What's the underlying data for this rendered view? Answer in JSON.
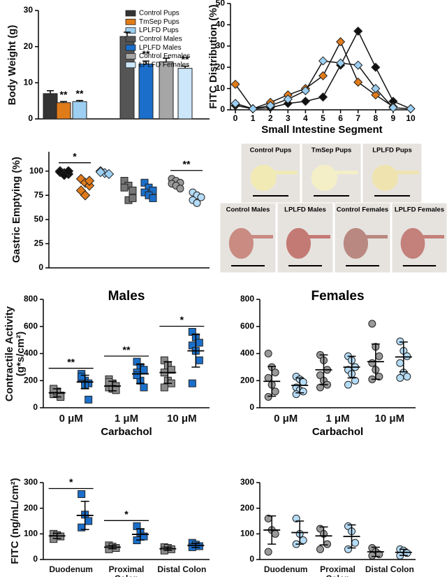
{
  "chart_data": [
    {
      "type": "bar",
      "ylabel": "Body Weight (g)",
      "ylim": [
        0,
        30
      ],
      "yticks": [
        0,
        10,
        20,
        30
      ],
      "series": [
        {
          "name": "Control Pups",
          "color": "#333333",
          "values": [
            7.0
          ],
          "errors": [
            0.8
          ]
        },
        {
          "name": "TmSep Pups",
          "color": "#e07b1a",
          "values": [
            4.5
          ],
          "errors": [
            0.3
          ]
        },
        {
          "name": "LPLFD Pups",
          "color": "#9ccff2",
          "values": [
            4.8
          ],
          "errors": [
            0.3
          ]
        },
        {
          "name": "Control Males",
          "color": "#555555",
          "values": [
            22.8
          ],
          "errors": [
            1.2
          ]
        },
        {
          "name": "LPLFD Males",
          "color": "#1b6fca",
          "values": [
            15.2
          ],
          "errors": [
            0.8
          ]
        },
        {
          "name": "Control Females",
          "color": "#a6a6a6",
          "values": [
            15.8
          ],
          "errors": [
            1.0
          ]
        },
        {
          "name": "LPLFD Females",
          "color": "#cce6fa",
          "values": [
            14.0
          ],
          "errors": [
            0.6
          ]
        }
      ],
      "significance": [
        null,
        "**",
        "**",
        null,
        "**",
        null,
        "**"
      ]
    },
    {
      "type": "line",
      "xlabel": "Small Intestine Segment",
      "ylabel": "FITC Distribution (%)",
      "x": [
        0,
        1,
        2,
        3,
        4,
        5,
        6,
        7,
        8,
        9,
        10
      ],
      "xlim": [
        0,
        10
      ],
      "xticks": [
        0,
        1,
        2,
        3,
        4,
        5,
        6,
        7,
        8,
        9,
        10
      ],
      "ylim": [
        0,
        50
      ],
      "yticks": [
        0,
        10,
        20,
        30,
        40,
        50
      ],
      "series": [
        {
          "color": "#111111",
          "values": [
            2,
            0.5,
            1,
            3,
            4,
            6,
            21,
            37,
            20,
            4,
            0.5
          ]
        },
        {
          "color": "#e07b1a",
          "values": [
            12,
            0.5,
            3.5,
            7,
            10,
            16,
            32,
            13,
            7,
            1.5,
            null
          ]
        },
        {
          "color": "#9ccff2",
          "values": [
            3,
            0.5,
            2,
            5,
            9,
            23,
            22,
            21,
            10,
            1,
            0.5
          ]
        }
      ]
    },
    {
      "type": "dot",
      "ylabel": "Gastric Emptying (%)",
      "ylim": [
        0,
        120
      ],
      "yticks": [
        0,
        25,
        50,
        75,
        100
      ],
      "groups": [
        {
          "color": "#111111",
          "marker": "diamond",
          "points": [
            100,
            98,
            97,
            99,
            96,
            100
          ]
        },
        {
          "color": "#e07b1a",
          "marker": "diamond",
          "points": [
            92,
            88,
            85,
            80,
            75,
            90
          ]
        },
        {
          "color": "#9ccff2",
          "marker": "diamond",
          "points": [
            100,
            98,
            97,
            99
          ]
        },
        {
          "color": "#777777",
          "marker": "square",
          "points": [
            90,
            85,
            80,
            83,
            70,
            72
          ]
        },
        {
          "color": "#1b6fca",
          "marker": "square",
          "points": [
            88,
            83,
            80,
            78,
            75,
            72
          ]
        },
        {
          "color": "#999999",
          "marker": "circle",
          "points": [
            92,
            90,
            88,
            87,
            85,
            82
          ]
        },
        {
          "color": "#b5dcf7",
          "marker": "circle",
          "points": [
            78,
            75,
            73,
            70,
            67
          ]
        }
      ],
      "comparisons": [
        {
          "groups": [
            0,
            1
          ],
          "label": "*"
        },
        {
          "groups": [
            5,
            6
          ],
          "label": "**"
        }
      ]
    },
    {
      "type": "groupdot",
      "title": "Males",
      "xlabel": "Carbachol",
      "ylabel": "Contractile Activity (g*s/cm²)",
      "categories": [
        "0 μM",
        "1 μM",
        "10 μM"
      ],
      "ylim": [
        0,
        800
      ],
      "yticks": [
        0,
        200,
        400,
        600,
        800
      ],
      "series": [
        {
          "color": "#8a8a8a",
          "marker": "square",
          "points": [
            [
              130,
              110,
              90,
              100,
              120,
              80,
              140
            ],
            [
              210,
              180,
              160,
              150,
              140,
              130,
              190
            ],
            [
              350,
              310,
              280,
              260,
              200,
              180,
              150
            ]
          ],
          "means": [
            110,
            160,
            260
          ],
          "sd": [
            30,
            35,
            80
          ]
        },
        {
          "color": "#1b6fca",
          "marker": "square",
          "points": [
            [
              250,
              200,
              180,
              220,
              170,
              60,
              230
            ],
            [
              340,
              300,
              280,
              260,
              200,
              150,
              240
            ],
            [
              560,
              520,
              480,
              460,
              420,
              350,
              180
            ]
          ],
          "means": [
            190,
            250,
            420
          ],
          "sd": [
            50,
            70,
            120
          ]
        }
      ],
      "significance": [
        "**",
        "**",
        "*"
      ]
    },
    {
      "type": "groupdot",
      "title": "Females",
      "xlabel": "Carbachol",
      "categories": [
        "0 μM",
        "1 μM",
        "10 μM"
      ],
      "ylim": [
        0,
        800
      ],
      "yticks": [
        0,
        200,
        400,
        600,
        800
      ],
      "series": [
        {
          "color": "#999999",
          "marker": "circle",
          "points": [
            [
              400,
              300,
              260,
              220,
              170,
              120,
              80
            ],
            [
              390,
              350,
              280,
              240,
              200,
              170,
              150
            ],
            [
              620,
              450,
              380,
              330,
              280,
              230,
              210
            ]
          ],
          "means": [
            195,
            280,
            340
          ],
          "sd": [
            110,
            110,
            130
          ]
        },
        {
          "color": "#b5dcf7",
          "marker": "circle",
          "points": [
            [
              230,
              210,
              190,
              150,
              130,
              120,
              100
            ],
            [
              380,
              350,
              300,
              280,
              250,
              200,
              170
            ],
            [
              490,
              420,
              380,
              330,
              260,
              230,
              220
            ]
          ],
          "means": [
            165,
            300,
            375
          ],
          "sd": [
            55,
            80,
            110
          ]
        }
      ]
    },
    {
      "type": "groupdot",
      "ylabel": "FITC (ng/mL/cm²)",
      "categories": [
        "Duodenum",
        "Proximal Colon",
        "Distal Colon"
      ],
      "ylim": [
        0,
        300
      ],
      "yticks": [
        0,
        100,
        200,
        300
      ],
      "series": [
        {
          "color": "#8a8a8a",
          "marker": "square",
          "points": [
            [
              100,
              95,
              90,
              80
            ],
            [
              55,
              50,
              45,
              40
            ],
            [
              48,
              45,
              40,
              35
            ]
          ],
          "means": [
            92,
            48,
            42
          ],
          "sd": [
            10,
            6,
            6
          ]
        },
        {
          "color": "#1b6fca",
          "marker": "square",
          "points": [
            [
              255,
              175,
              150,
              125
            ],
            [
              130,
              105,
              90,
              75
            ],
            [
              65,
              58,
              52,
              48
            ]
          ],
          "means": [
            172,
            98,
            55
          ],
          "sd": [
            55,
            22,
            8
          ]
        }
      ],
      "significance": [
        "*",
        "*",
        null
      ]
    },
    {
      "type": "groupdot",
      "categories": [
        "Duodenum",
        "Proximal Colon",
        "Distal Colon"
      ],
      "ylim": [
        0,
        300
      ],
      "yticks": [
        0,
        100,
        200,
        300
      ],
      "series": [
        {
          "color": "#999999",
          "marker": "circle",
          "points": [
            [
              160,
              115,
              100,
              30
            ],
            [
              120,
              100,
              60,
              40
            ],
            [
              45,
              30,
              20,
              15
            ]
          ],
          "means": [
            115,
            92,
            30
          ],
          "sd": [
            55,
            35,
            18
          ]
        },
        {
          "color": "#b5dcf7",
          "marker": "circle",
          "points": [
            [
              160,
              100,
              75,
              60
            ],
            [
              130,
              110,
              65,
              40
            ],
            [
              40,
              35,
              25,
              15
            ]
          ],
          "means": [
            105,
            90,
            28
          ],
          "sd": [
            45,
            45,
            12
          ]
        }
      ]
    }
  ],
  "photos": {
    "labels": [
      "Control Pups",
      "TmSep Pups",
      "LPLFD Pups",
      "Control Males",
      "LPLFD Males",
      "Control Females",
      "LPLFD Females"
    ]
  }
}
